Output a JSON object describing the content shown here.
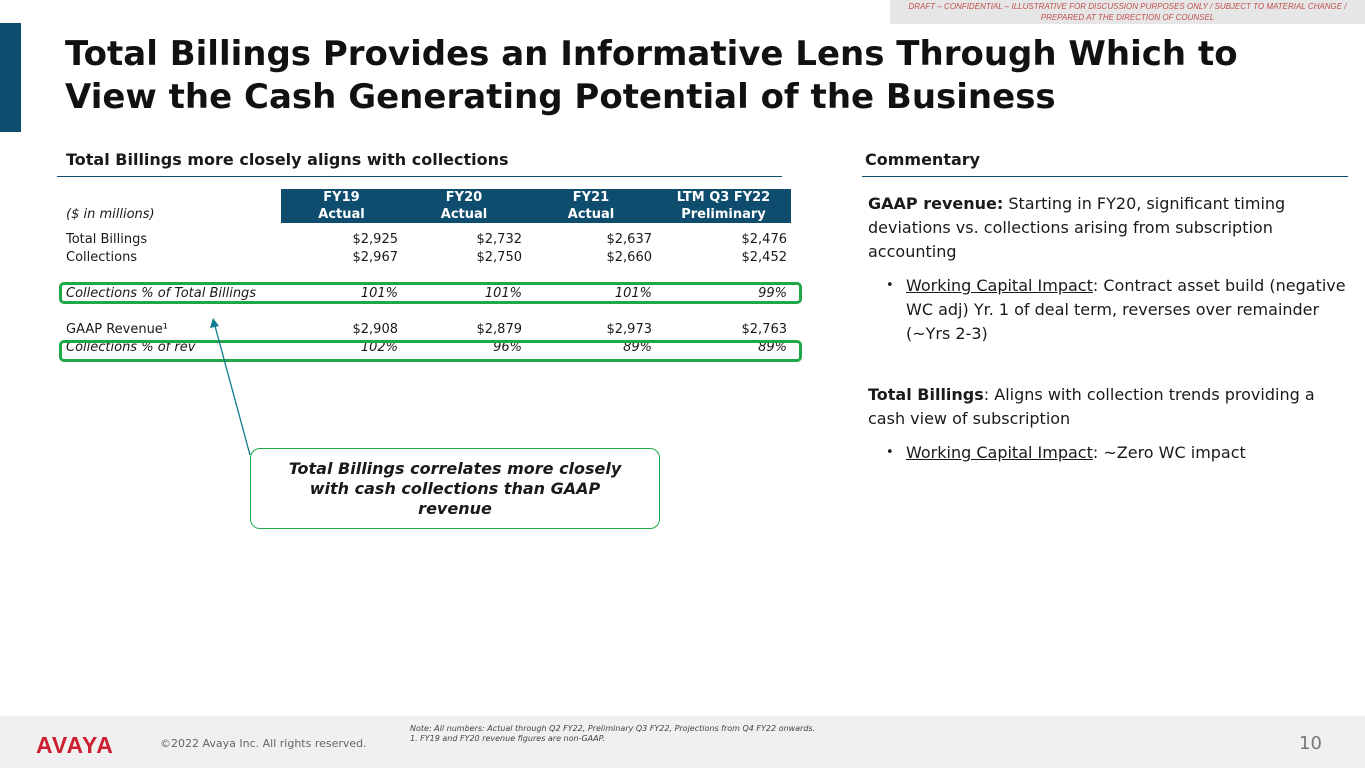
{
  "draft_notice": "DRAFT – CONFIDENTIAL – ILLUSTRATIVE FOR DISCUSSION PURPOSES ONLY / SUBJECT TO MATERIAL CHANGE / PREPARED AT THE DIRECTION OF COUNSEL",
  "title": "Total Billings Provides an Informative Lens Through Which to View the Cash Generating Potential of the Business",
  "left_section": {
    "heading": "Total Billings more closely aligns with collections",
    "units_label": "($ in millions)",
    "columns": [
      {
        "line1": "FY19",
        "line2": "Actual"
      },
      {
        "line1": "FY20",
        "line2": "Actual"
      },
      {
        "line1": "FY21",
        "line2": "Actual"
      },
      {
        "line1": "LTM Q3 FY22",
        "line2": "Preliminary"
      }
    ],
    "rows": {
      "total_billings": {
        "label": "Total Billings",
        "values": [
          "$2,925",
          "$2,732",
          "$2,637",
          "$2,476"
        ]
      },
      "collections": {
        "label": "Collections",
        "values": [
          "$2,967",
          "$2,750",
          "$2,660",
          "$2,452"
        ]
      },
      "collections_pct_billings": {
        "label": "Collections % of Total Billings",
        "values": [
          "101%",
          "101%",
          "101%",
          "99%"
        ]
      },
      "gaap_revenue": {
        "label": "GAAP Revenue¹",
        "values": [
          "$2,908",
          "$2,879",
          "$2,973",
          "$2,763"
        ]
      },
      "collections_pct_rev": {
        "label": "Collections % of rev",
        "values": [
          "102%",
          "96%",
          "89%",
          "89%"
        ]
      }
    },
    "callout": "Total Billings correlates more closely with cash collections than GAAP revenue",
    "accent_green": "#1ea84a",
    "header_blue": "#0e4d6e"
  },
  "commentary": {
    "heading": "Commentary",
    "gaap_label": "GAAP revenue:",
    "gaap_text": " Starting in FY20, significant timing deviations vs. collections arising from subscription accounting",
    "gaap_bullet_label": "Working Capital Impact",
    "gaap_bullet_text": ": Contract asset build (negative WC adj) Yr. 1 of deal term, reverses over remainder (~Yrs 2-3)",
    "billings_label": "Total Billings",
    "billings_text": ": Aligns with collection trends providing a cash view of subscription",
    "billings_bullet_label": "Working Capital Impact",
    "billings_bullet_text": ": ~Zero WC impact"
  },
  "footer": {
    "logo": "AVAYA",
    "copyright": "©2022 Avaya Inc. All rights reserved.",
    "note_line1": "Note: All numbers: Actual through Q2 FY22, Preliminary Q3 FY22, Projections from Q4 FY22 onwards.",
    "note_line2": "1. FY19 and FY20 revenue figures are non-GAAP.",
    "page_number": "10"
  }
}
